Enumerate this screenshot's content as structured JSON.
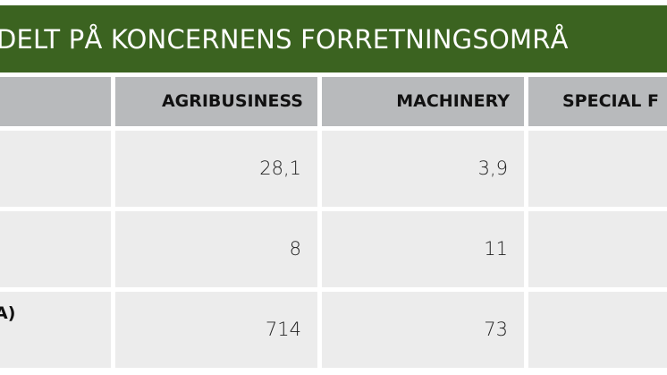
{
  "title": "DELT PÅ KONCERNENS FORRETNINGSOMRÅ",
  "table": {
    "columns": [
      "",
      "AGRIBUSINESS",
      "MACHINERY",
      "SPECIAL F"
    ],
    "rows": [
      {
        "label": "",
        "values": [
          "28,1",
          "3,9",
          ""
        ]
      },
      {
        "label": "",
        "values": [
          "8",
          "11",
          ""
        ]
      },
      {
        "label": "A)",
        "values": [
          "714",
          "73",
          ""
        ]
      }
    ]
  },
  "colors": {
    "title_bar": "#3b6320",
    "header_bg": "#b8babc",
    "cell_bg": "#ececec"
  }
}
